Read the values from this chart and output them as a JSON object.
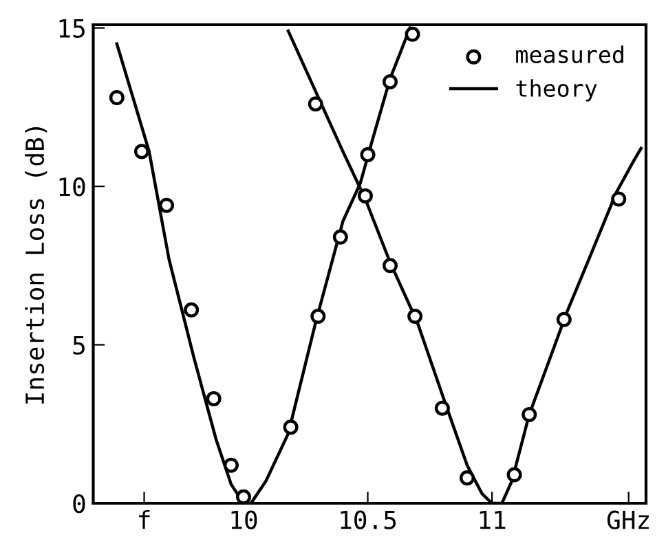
{
  "chart_data": {
    "type": "line",
    "ylabel": "Insertion Loss (dB)",
    "xlim": [
      9.395,
      11.62
    ],
    "ylim": [
      0,
      15.1
    ],
    "xticks": [
      {
        "value": 9.6,
        "label": "f"
      },
      10,
      10.5,
      11,
      {
        "value": 11.55,
        "label": "GHz"
      }
    ],
    "yticks": [
      0,
      5,
      10,
      15
    ],
    "grid": false,
    "legend": "top right",
    "series": [
      {
        "name": "measured",
        "type": "scatter",
        "marker": "circle",
        "color": "#000000",
        "x": [
          9.49,
          9.59,
          9.69,
          9.79,
          9.88,
          9.95,
          10.0,
          10.19,
          10.3,
          10.39,
          10.5,
          10.59,
          10.68,
          10.29,
          10.49,
          10.59,
          10.69,
          10.8,
          10.9,
          11.09,
          11.15,
          11.29,
          11.51
        ],
        "values": [
          12.8,
          11.1,
          9.4,
          6.1,
          3.3,
          1.2,
          0.2,
          2.4,
          5.9,
          8.4,
          11.0,
          13.3,
          14.8,
          12.6,
          9.7,
          7.5,
          5.9,
          3.0,
          0.8,
          0.9,
          2.8,
          5.8,
          9.6
        ]
      },
      {
        "name": "theory",
        "color": "#000000",
        "x": [
          9.49,
          9.62,
          9.7,
          9.8,
          9.89,
          9.95,
          10.0,
          10.03,
          10.09,
          10.18,
          10.29,
          10.4,
          10.47,
          10.52,
          10.59,
          10.67
        ],
        "values": [
          14.5,
          11.1,
          7.7,
          4.6,
          2.0,
          0.6,
          0,
          0,
          0.7,
          2.2,
          5.7,
          8.9,
          10.1,
          11.5,
          13.4,
          15.0
        ]
      },
      {
        "color": "#000000",
        "x": [
          10.18,
          10.29,
          10.4,
          10.49,
          10.59,
          10.7,
          10.81,
          10.9,
          10.96,
          11.0,
          11.04,
          11.08,
          11.15,
          11.23,
          11.3,
          11.39,
          11.5,
          11.57,
          11.6
        ],
        "values": [
          14.9,
          13.0,
          11.1,
          9.6,
          7.6,
          5.7,
          3.2,
          1.2,
          0.3,
          0,
          0,
          0.7,
          2.8,
          4.5,
          6.0,
          7.7,
          9.8,
          10.8,
          11.2
        ]
      }
    ]
  }
}
